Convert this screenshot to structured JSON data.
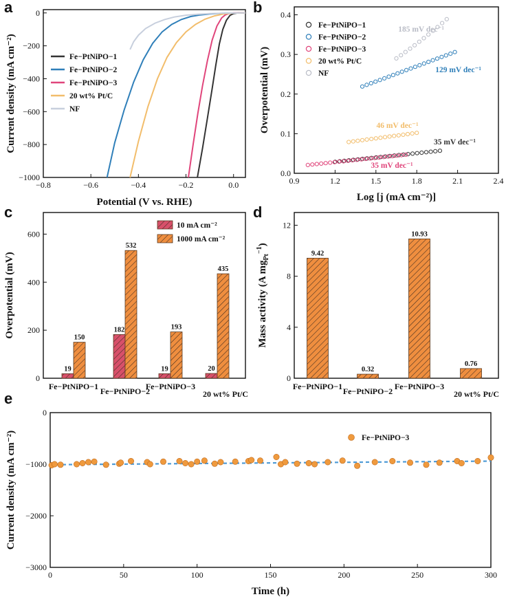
{
  "chart_data": [
    {
      "panel": "a",
      "type": "line",
      "xlabel": "Potential (V vs. RHE)",
      "ylabel": "Current density (mA cm⁻²)",
      "xlim": [
        -0.8,
        0.05
      ],
      "ylim": [
        -1000,
        20
      ],
      "xticks": [
        -0.8,
        -0.6,
        -0.4,
        -0.2,
        0.0
      ],
      "yticks": [
        0,
        -200,
        -400,
        -600,
        -800,
        -1000
      ],
      "xtick_labels": [
        "−0.8",
        "−0.6",
        "−0.4",
        "−0.2",
        "0.0"
      ],
      "ytick_labels": [
        "0",
        "−200",
        "−400",
        "−600",
        "−800",
        "−1000"
      ],
      "series": [
        {
          "name": "Fe−PtNiPO−1",
          "color": "#333333",
          "x": [
            -0.152,
            -0.13,
            -0.11,
            -0.09,
            -0.075,
            -0.06,
            -0.045,
            -0.03,
            -0.015,
            0.0,
            0.02,
            0.05
          ],
          "y": [
            -1000,
            -820,
            -640,
            -460,
            -320,
            -190,
            -100,
            -45,
            -15,
            -4,
            0,
            0
          ]
        },
        {
          "name": "Fe−PtNiPO−2",
          "color": "#2f7fb9",
          "x": [
            -0.532,
            -0.5,
            -0.46,
            -0.42,
            -0.38,
            -0.34,
            -0.3,
            -0.26,
            -0.22,
            -0.18,
            -0.14,
            -0.1,
            -0.06,
            -0.02,
            0.05
          ],
          "y": [
            -1000,
            -790,
            -590,
            -420,
            -285,
            -185,
            -115,
            -70,
            -40,
            -22,
            -12,
            -6,
            -3,
            -1,
            0
          ]
        },
        {
          "name": "Fe−PtNiPO−3",
          "color": "#e0457b",
          "x": [
            -0.19,
            -0.17,
            -0.15,
            -0.13,
            -0.11,
            -0.09,
            -0.07,
            -0.05,
            -0.035,
            -0.02,
            0.0,
            0.05
          ],
          "y": [
            -1000,
            -800,
            -610,
            -440,
            -290,
            -165,
            -80,
            -30,
            -12,
            -4,
            0,
            0
          ]
        },
        {
          "name": "20 wt% Pt/C",
          "color": "#f2bd6b",
          "x": [
            -0.435,
            -0.4,
            -0.36,
            -0.32,
            -0.28,
            -0.24,
            -0.2,
            -0.16,
            -0.12,
            -0.08,
            -0.04,
            0.0,
            0.05
          ],
          "y": [
            -1000,
            -780,
            -570,
            -400,
            -270,
            -180,
            -115,
            -70,
            -38,
            -18,
            -6,
            -1,
            0
          ]
        },
        {
          "name": "NF",
          "color": "#c7cfdd",
          "x": [
            -0.435,
            -0.42,
            -0.4,
            -0.37,
            -0.33,
            -0.29,
            -0.25,
            -0.2,
            -0.15,
            -0.1,
            -0.05,
            0.0,
            0.05
          ],
          "y": [
            -222,
            -175,
            -135,
            -95,
            -62,
            -40,
            -25,
            -14,
            -8,
            -4,
            -2,
            -1,
            0
          ]
        }
      ]
    },
    {
      "panel": "b",
      "type": "scatter",
      "xlabel": "Log [j (mA cm⁻²)]",
      "ylabel": "Overpotential (mV)",
      "xlim": [
        0.9,
        2.4
      ],
      "ylim": [
        0.0,
        0.42
      ],
      "xticks": [
        0.9,
        1.2,
        1.5,
        1.8,
        2.1,
        2.4
      ],
      "yticks": [
        0.0,
        0.1,
        0.2,
        0.3,
        0.4
      ],
      "xtick_labels": [
        "0.9",
        "1.2",
        "1.5",
        "1.8",
        "2.1",
        "2.4"
      ],
      "ytick_labels": [
        "0.0",
        "0.1",
        "0.2",
        "0.3",
        "0.4"
      ],
      "series": [
        {
          "name": "Fe−PtNiPO−1",
          "color": "#333333",
          "x_range": [
            1.2,
            1.97
          ],
          "y_range": [
            0.029,
            0.057
          ],
          "tafel": "35 mV dec⁻¹"
        },
        {
          "name": "Fe−PtNiPO−2",
          "color": "#2f7fb9",
          "x_range": [
            1.4,
            2.08
          ],
          "y_range": [
            0.219,
            0.306
          ],
          "tafel": "129 mV dec⁻¹"
        },
        {
          "name": "Fe−PtNiPO−3",
          "color": "#e0457b",
          "x_range": [
            1.0,
            1.72
          ],
          "y_range": [
            0.021,
            0.047
          ],
          "tafel": "35 mV dec⁻¹"
        },
        {
          "name": "20 wt% Pt/C",
          "color": "#f2bd6b",
          "x_range": [
            1.3,
            1.8
          ],
          "y_range": [
            0.079,
            0.102
          ],
          "tafel": "46 mV dec⁻¹"
        },
        {
          "name": "NF",
          "color": "#b9bcc6",
          "x_range": [
            1.65,
            2.02
          ],
          "y_range": [
            0.29,
            0.383
          ],
          "tafel": "185 mV dec⁻¹"
        }
      ]
    },
    {
      "panel": "c",
      "type": "bar",
      "ylabel": "Overpotential (mV)",
      "categories": [
        "Fe−PtNiPO−1",
        "Fe−PtNiPO−2",
        "Fe−PtNiPO−3",
        "20 wt% Pt/C"
      ],
      "ylim": [
        0,
        690
      ],
      "yticks": [
        0,
        200,
        400,
        600
      ],
      "series": [
        {
          "name": "10 mA cm⁻²",
          "color": "#d8506a",
          "values": [
            19,
            182,
            19,
            20
          ]
        },
        {
          "name": "1000 mA cm⁻²",
          "color": "#ef8e3f",
          "values": [
            150,
            532,
            193,
            435
          ]
        }
      ]
    },
    {
      "panel": "d",
      "type": "bar",
      "ylabel": "Mass activity (A mg",
      "ylabel_sub": "Pt",
      "ylabel_sup": "−1",
      "ylabel_close": ")",
      "categories": [
        "Fe−PtNiPO−1",
        "Fe−PtNiPO−2",
        "Fe−PtNiPO−3",
        "20 wt% Pt/C"
      ],
      "ylim": [
        0,
        13
      ],
      "yticks": [
        0,
        4,
        8,
        12
      ],
      "color": "#ef8e3f",
      "values": [
        9.42,
        0.32,
        10.93,
        0.76
      ]
    },
    {
      "panel": "e",
      "type": "scatter",
      "xlabel": "Time (h)",
      "ylabel": "Current density (mA cm⁻²)",
      "xlim": [
        0,
        300
      ],
      "ylim": [
        -3000,
        0
      ],
      "xticks": [
        0,
        50,
        100,
        150,
        200,
        250,
        300
      ],
      "yticks": [
        0,
        -1000,
        -2000,
        -3000
      ],
      "xtick_labels": [
        "0",
        "50",
        "100",
        "150",
        "200",
        "250",
        "300"
      ],
      "ytick_labels": [
        "0",
        "−1000",
        "−2000",
        "−3000"
      ],
      "trend": {
        "x": [
          0,
          300
        ],
        "y": [
          -1010,
          -940
        ],
        "color": "#4f9bd6"
      },
      "series": [
        {
          "name": "Fe−PtNiPO−3",
          "color": "#ef9a3e",
          "x": [
            1,
            3,
            7,
            18,
            22,
            26,
            30,
            38,
            47,
            48,
            55,
            66,
            68,
            77,
            88,
            92,
            96,
            100,
            105,
            112,
            116,
            126,
            135,
            137,
            143,
            154,
            157,
            160,
            168,
            176,
            180,
            189,
            199,
            209,
            221,
            233,
            245,
            256,
            265,
            277,
            280,
            291,
            300
          ],
          "y": [
            -1020,
            -1000,
            -1010,
            -1000,
            -980,
            -960,
            -950,
            -1010,
            -990,
            -970,
            -940,
            -960,
            -1000,
            -950,
            -940,
            -980,
            -1000,
            -950,
            -930,
            -990,
            -960,
            -950,
            -940,
            -920,
            -930,
            -860,
            -1000,
            -960,
            -990,
            -980,
            -1000,
            -960,
            -930,
            -1030,
            -960,
            -940,
            -970,
            -1010,
            -970,
            -940,
            -980,
            -940,
            -870
          ]
        }
      ]
    }
  ]
}
